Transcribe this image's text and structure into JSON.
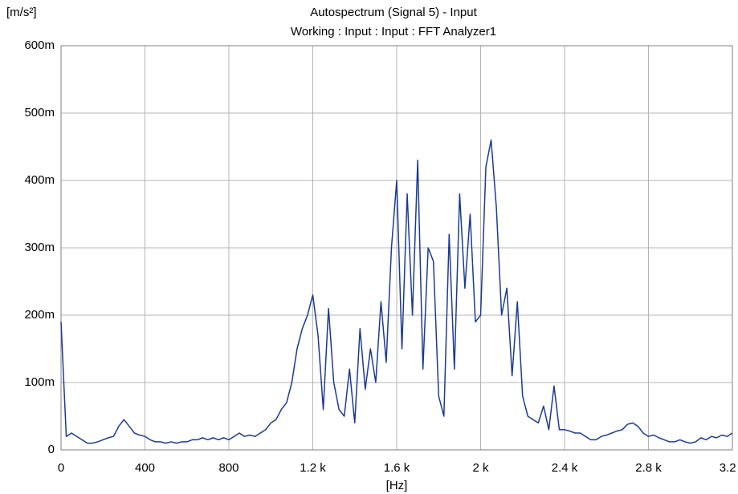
{
  "chart_data": {
    "type": "line",
    "title": "Autospectrum (Signal 5) - Input",
    "subtitle": "Working : Input : Input : FFT Analyzer1",
    "y_axis_label": "[m/s²]",
    "x_axis_label": "[Hz]",
    "grid": true,
    "xlim": [
      0,
      3200
    ],
    "ylim": [
      0,
      0.6
    ],
    "xticks": [
      0,
      400,
      800,
      {
        "value": 1200,
        "label": "1.2 k"
      },
      {
        "value": 1600,
        "label": "1.6 k"
      },
      {
        "value": 2000,
        "label": "2 k"
      },
      {
        "value": 2400,
        "label": "2.4 k"
      },
      {
        "value": 2800,
        "label": "2.8 k"
      },
      {
        "value": 3200,
        "label": "3.2 k"
      }
    ],
    "yticks": [
      0,
      {
        "value": 0.1,
        "label": "100m"
      },
      {
        "value": 0.2,
        "label": "200m"
      },
      {
        "value": 0.3,
        "label": "300m"
      },
      {
        "value": 0.4,
        "label": "400m"
      },
      {
        "value": 0.5,
        "label": "500m"
      },
      {
        "value": 0.6,
        "label": "600m"
      }
    ],
    "x": [
      0,
      25,
      50,
      75,
      100,
      125,
      150,
      175,
      200,
      225,
      250,
      275,
      300,
      325,
      350,
      375,
      400,
      425,
      450,
      475,
      500,
      525,
      550,
      575,
      600,
      625,
      650,
      675,
      700,
      725,
      750,
      775,
      800,
      825,
      850,
      875,
      900,
      925,
      950,
      975,
      1000,
      1025,
      1050,
      1075,
      1100,
      1125,
      1150,
      1175,
      1200,
      1225,
      1250,
      1275,
      1300,
      1325,
      1350,
      1375,
      1400,
      1425,
      1450,
      1475,
      1500,
      1525,
      1550,
      1575,
      1600,
      1625,
      1650,
      1675,
      1700,
      1725,
      1750,
      1775,
      1800,
      1825,
      1850,
      1875,
      1900,
      1925,
      1950,
      1975,
      2000,
      2025,
      2050,
      2075,
      2100,
      2125,
      2150,
      2175,
      2200,
      2225,
      2250,
      2275,
      2300,
      2325,
      2350,
      2375,
      2400,
      2425,
      2450,
      2475,
      2500,
      2525,
      2550,
      2575,
      2600,
      2625,
      2650,
      2675,
      2700,
      2725,
      2750,
      2775,
      2800,
      2825,
      2850,
      2875,
      2900,
      2925,
      2950,
      2975,
      3000,
      3025,
      3050,
      3075,
      3100,
      3125,
      3150,
      3175,
      3200
    ],
    "series": [
      {
        "name": "Autospectrum (Signal 5) - Input",
        "color": "#1c3a94",
        "values": [
          0.19,
          0.02,
          0.025,
          0.02,
          0.015,
          0.01,
          0.01,
          0.012,
          0.015,
          0.018,
          0.02,
          0.035,
          0.045,
          0.035,
          0.025,
          0.022,
          0.02,
          0.015,
          0.012,
          0.012,
          0.01,
          0.012,
          0.01,
          0.012,
          0.012,
          0.015,
          0.015,
          0.018,
          0.015,
          0.018,
          0.015,
          0.018,
          0.015,
          0.02,
          0.025,
          0.02,
          0.022,
          0.02,
          0.025,
          0.03,
          0.04,
          0.045,
          0.06,
          0.07,
          0.1,
          0.15,
          0.18,
          0.2,
          0.23,
          0.17,
          0.06,
          0.21,
          0.1,
          0.06,
          0.05,
          0.12,
          0.04,
          0.18,
          0.09,
          0.15,
          0.1,
          0.22,
          0.13,
          0.3,
          0.4,
          0.15,
          0.38,
          0.2,
          0.43,
          0.12,
          0.3,
          0.28,
          0.08,
          0.05,
          0.32,
          0.12,
          0.38,
          0.24,
          0.35,
          0.19,
          0.2,
          0.42,
          0.46,
          0.36,
          0.2,
          0.24,
          0.11,
          0.22,
          0.08,
          0.05,
          0.045,
          0.04,
          0.065,
          0.03,
          0.095,
          0.03,
          0.03,
          0.028,
          0.025,
          0.025,
          0.02,
          0.015,
          0.015,
          0.02,
          0.022,
          0.025,
          0.028,
          0.03,
          0.038,
          0.04,
          0.035,
          0.025,
          0.02,
          0.022,
          0.018,
          0.015,
          0.012,
          0.012,
          0.015,
          0.012,
          0.01,
          0.012,
          0.018,
          0.015,
          0.02,
          0.018,
          0.022,
          0.02,
          0.025
        ]
      }
    ]
  }
}
